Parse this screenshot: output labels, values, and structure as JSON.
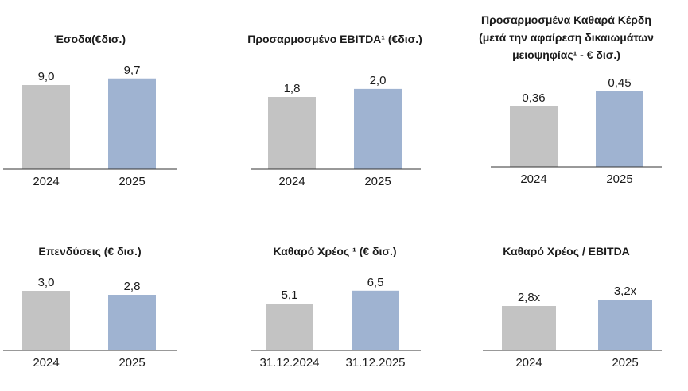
{
  "colors": {
    "bar_prev": "#c3c3c3",
    "bar_curr": "#9fb3d1",
    "axis": "#333333",
    "text": "#1a1a1a"
  },
  "chart_data": [
    {
      "type": "bar",
      "title": [
        "Έσοδα(€δισ.)"
      ],
      "categories": [
        "2024",
        "2025"
      ],
      "values": [
        9.0,
        9.7
      ],
      "value_labels": [
        "9,0",
        "9,7"
      ],
      "xlabel": "",
      "ylabel": "",
      "grid": false
    },
    {
      "type": "bar",
      "title": [
        "Προσαρμοσμένο  EBITDA¹ (€δισ.)"
      ],
      "categories": [
        "2024",
        "2025"
      ],
      "values": [
        1.8,
        2.0
      ],
      "value_labels": [
        "1,8",
        "2,0"
      ],
      "xlabel": "",
      "ylabel": "",
      "grid": false
    },
    {
      "type": "bar",
      "title": [
        "Προσαρμοσμένα Καθαρά Κέρδη",
        "(μετά την αφαίρεση δικαιωμάτων",
        "μειοψηφίας¹  - € δισ.)"
      ],
      "categories": [
        "2024",
        "2025"
      ],
      "values": [
        0.36,
        0.45
      ],
      "value_labels": [
        "0,36",
        "0,45"
      ],
      "xlabel": "",
      "ylabel": "",
      "grid": false
    },
    {
      "type": "bar",
      "title": [
        "Επενδύσεις (€ δισ.)"
      ],
      "categories": [
        "2024",
        "2025"
      ],
      "values": [
        3.0,
        2.8
      ],
      "value_labels": [
        "3,0",
        "2,8"
      ],
      "xlabel": "",
      "ylabel": "",
      "grid": false
    },
    {
      "type": "bar",
      "title": [
        "Καθαρό Χρέος ¹ (€ δισ.)"
      ],
      "categories": [
        "31.12.2024",
        "31.12.2025"
      ],
      "values": [
        5.1,
        6.5
      ],
      "value_labels": [
        "5,1",
        "6,5"
      ],
      "xlabel": "",
      "ylabel": "",
      "grid": false
    },
    {
      "type": "bar",
      "title": [
        "Καθαρό Χρέος / EBITDA"
      ],
      "categories": [
        "2024",
        "2025"
      ],
      "values": [
        2.8,
        3.2
      ],
      "value_labels": [
        "2,8x",
        "3,2x"
      ],
      "xlabel": "",
      "ylabel": "",
      "grid": false
    }
  ]
}
